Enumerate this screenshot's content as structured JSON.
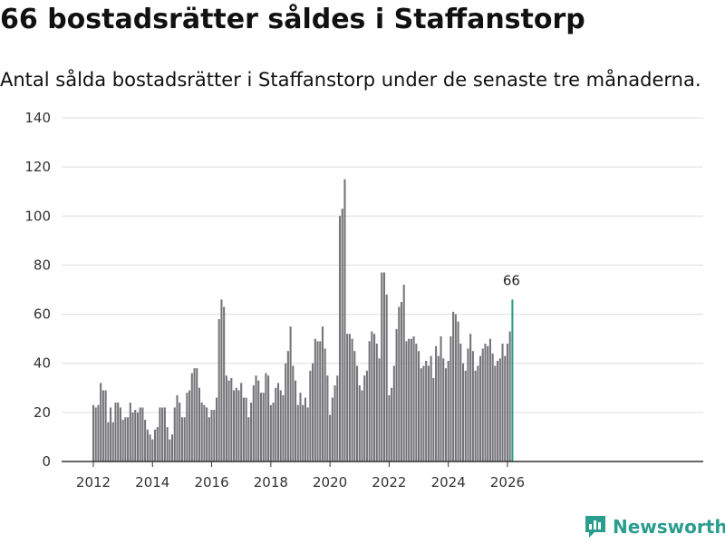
{
  "title": "66 bostadsrätter såldes i Staffanstorp",
  "subtitle": "Antal sålda bostadsrätter i Staffanstorp under de senaste tre månaderna.",
  "brand": {
    "name": "Newsworthy",
    "color": "#2a9d8f"
  },
  "colors": {
    "bar": "#747378",
    "highlight": "#2a9d8f",
    "grid": "#dddddd",
    "axis": "#333333"
  },
  "chart_data": {
    "type": "bar",
    "title": "66 bostadsrätter såldes i Staffanstorp",
    "xlabel": "",
    "ylabel": "",
    "ylim": [
      0,
      140
    ],
    "yticks": [
      0,
      20,
      40,
      60,
      80,
      100,
      120,
      140
    ],
    "xticks": [
      "2012",
      "2014",
      "2016",
      "2018",
      "2020",
      "2022",
      "2024",
      "2026"
    ],
    "start": "2012-01",
    "values": [
      23,
      22,
      23,
      32,
      29,
      29,
      16,
      22,
      16,
      24,
      24,
      22,
      17,
      18,
      18,
      24,
      20,
      21,
      20,
      22,
      22,
      17,
      13,
      11,
      9,
      13,
      14,
      22,
      22,
      22,
      14,
      9,
      11,
      22,
      27,
      24,
      18,
      18,
      28,
      29,
      36,
      38,
      38,
      30,
      24,
      23,
      22,
      18,
      21,
      21,
      26,
      58,
      66,
      63,
      35,
      33,
      34,
      29,
      30,
      29,
      32,
      26,
      26,
      18,
      24,
      31,
      35,
      33,
      28,
      28,
      36,
      35,
      23,
      24,
      30,
      32,
      29,
      27,
      40,
      45,
      55,
      39,
      33,
      23,
      28,
      23,
      26,
      22,
      37,
      40,
      50,
      49,
      49,
      55,
      46,
      35,
      19,
      26,
      31,
      35,
      100,
      103,
      115,
      52,
      52,
      50,
      45,
      39,
      31,
      29,
      35,
      37,
      49,
      53,
      52,
      48,
      42,
      77,
      77,
      68,
      27,
      30,
      39,
      54,
      63,
      65,
      72,
      49,
      50,
      50,
      51,
      48,
      45,
      38,
      39,
      41,
      39,
      43,
      34,
      47,
      43,
      51,
      42,
      38,
      41,
      51,
      61,
      60,
      57,
      48,
      40,
      37,
      46,
      52,
      45,
      37,
      39,
      43,
      46,
      48,
      47,
      50,
      44,
      39,
      41,
      42,
      48,
      43,
      48,
      53,
      66
    ],
    "highlight_last": true,
    "annotation": "66"
  }
}
